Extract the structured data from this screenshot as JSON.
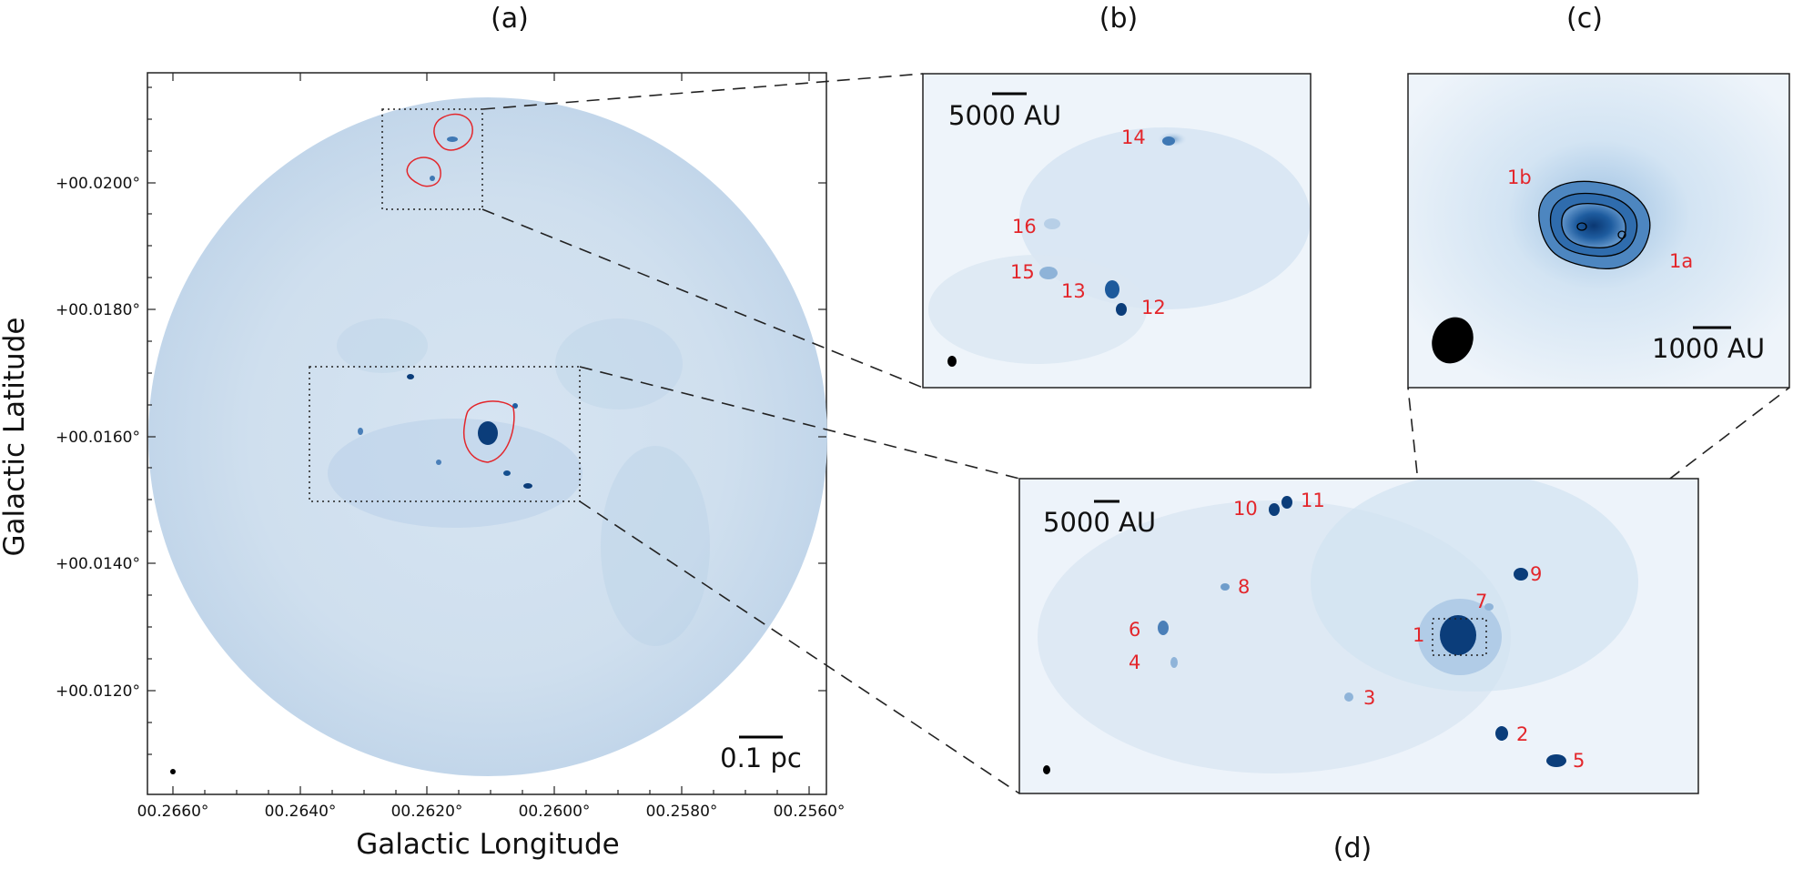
{
  "figure": {
    "panels": [
      {
        "id": "a",
        "letter": "(a)"
      },
      {
        "id": "b",
        "letter": "(b)"
      },
      {
        "id": "c",
        "letter": "(c)"
      },
      {
        "id": "d",
        "letter": "(d)"
      }
    ],
    "axes": {
      "xlabel": "Galactic Longitude",
      "ylabel": "Galactic Latitude",
      "x_ticks": [
        "00.2660°",
        "00.2640°",
        "00.2620°",
        "00.2600°",
        "00.2580°",
        "00.2560°"
      ],
      "y_ticks": [
        "+00.0120°",
        "+00.0140°",
        "+00.0160°",
        "+00.0180°",
        "+00.0200°"
      ]
    },
    "scalebars": {
      "a": "0.1 pc",
      "b": "5000 AU",
      "c": "1000 AU",
      "d": "5000 AU"
    },
    "sources_b": [
      "14",
      "16",
      "15",
      "13",
      "12"
    ],
    "sources_c": [
      "1b",
      "1a"
    ],
    "sources_d": [
      "10",
      "11",
      "8",
      "9",
      "7",
      "1",
      "6",
      "4",
      "3",
      "2",
      "5"
    ],
    "colors": {
      "map_light": "#e6eff8",
      "map_mid": "#c5d9ec",
      "source_dark": "#0b3d7a",
      "contour_red": "#e3262b",
      "label_red": "#e3262b"
    }
  }
}
